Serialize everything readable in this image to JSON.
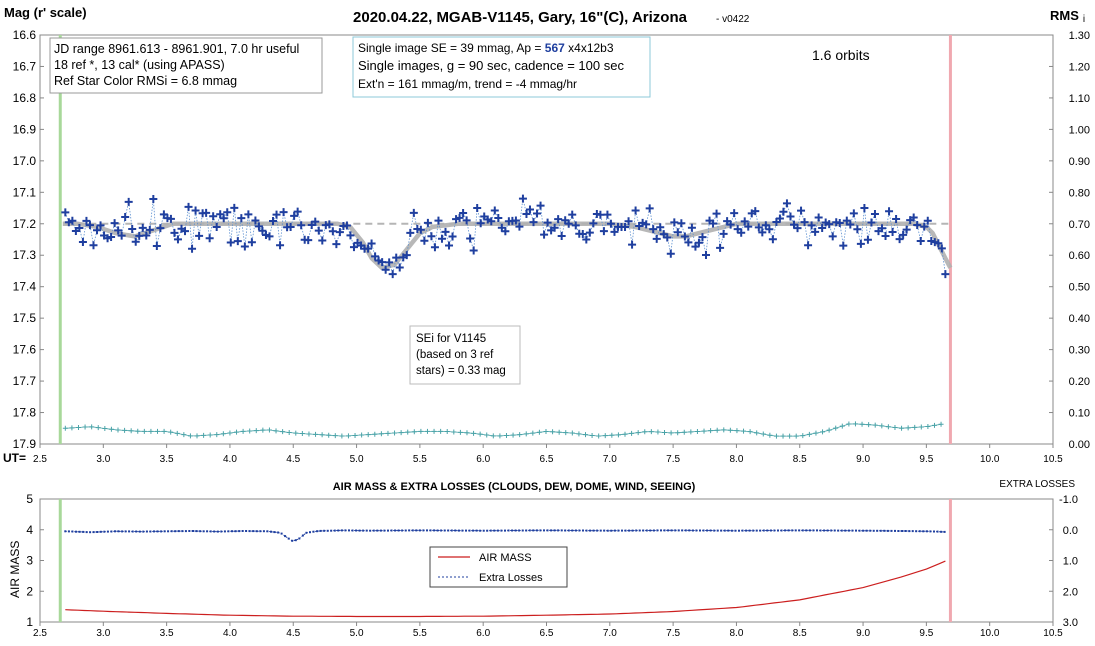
{
  "chart_data": [
    {
      "type": "scatter",
      "title": "2020.04.22, MGAB-V1145, Gary, 16\"(C), Arizona",
      "version": "- v0422",
      "ylabel": "Mag (r' scale)",
      "y2label": "RMS",
      "y2label_sub": "i",
      "xlabel": "UT=",
      "xlim": [
        2.5,
        10.5
      ],
      "ylim": [
        16.6,
        17.9
      ],
      "y2lim": [
        0.0,
        1.3
      ],
      "y_inverted": true,
      "x_ticks": [
        "2.5",
        "3.0",
        "3.5",
        "4.0",
        "4.5",
        "5.0",
        "5.5",
        "6.0",
        "6.5",
        "7.0",
        "7.5",
        "8.0",
        "8.5",
        "9.0",
        "9.5",
        "10.0",
        "10.5"
      ],
      "y_ticks": [
        "16.6",
        "16.7",
        "16.8",
        "16.9",
        "17.0",
        "17.1",
        "17.2",
        "17.3",
        "17.4",
        "17.5",
        "17.6",
        "17.7",
        "17.8",
        "17.9"
      ],
      "y2_ticks": [
        "1.30",
        "1.20",
        "1.10",
        "1.00",
        "0.90",
        "0.80",
        "0.70",
        "0.60",
        "0.50",
        "0.40",
        "0.30",
        "0.20",
        "0.10",
        "0.00"
      ],
      "info_box_1": [
        "JD range 8961.613 - 8961.901, 7.0 hr useful",
        "18 ref *, 13 cal* (using APASS)",
        "Ref Star Color RMSi = 6.8 mmag"
      ],
      "info_box_2": {
        "line1_prefix": "Single image SE = 39 mmag, Ap = ",
        "line1_ap": "567",
        "line1_suffix": " x4x12b3",
        "line2": "Single images, g = 90 sec, cadence = 100 sec",
        "line3": "Ext'n = 161 mmag/m, trend = -4 mmag/hr"
      },
      "annotation_orbits": "1.6 orbits",
      "annotation_sei": [
        "SEi for V1145",
        "(based on 3 ref",
        "stars) = 0.33 mag"
      ],
      "start_marker_x": 2.66,
      "end_marker_x": 9.69,
      "reference_level": 17.2,
      "series": [
        {
          "role": "magnitude",
          "color": "#1f3f9f"
        },
        {
          "role": "model_fit",
          "color": "#b0b0b0",
          "x": [
            2.68,
            2.8,
            2.95,
            3.1,
            3.25,
            3.4,
            3.55,
            3.7,
            3.9,
            4.1,
            4.3,
            4.5,
            4.7,
            4.85,
            4.95,
            5.05,
            5.12,
            5.2,
            5.3,
            5.4,
            5.5,
            5.6,
            5.8,
            6.0,
            6.2,
            6.4,
            6.6,
            6.8,
            7.0,
            7.2,
            7.4,
            7.5,
            7.6,
            7.7,
            7.8,
            8.0,
            8.2,
            8.4,
            8.6,
            8.8,
            9.0,
            9.2,
            9.4,
            9.5,
            9.55,
            9.6,
            9.65,
            9.69
          ],
          "y": [
            17.2,
            17.2,
            17.21,
            17.23,
            17.24,
            17.22,
            17.2,
            17.2,
            17.2,
            17.2,
            17.2,
            17.2,
            17.2,
            17.2,
            17.21,
            17.26,
            17.31,
            17.34,
            17.33,
            17.28,
            17.23,
            17.21,
            17.2,
            17.2,
            17.2,
            17.2,
            17.2,
            17.2,
            17.2,
            17.21,
            17.23,
            17.24,
            17.24,
            17.23,
            17.22,
            17.2,
            17.2,
            17.2,
            17.2,
            17.2,
            17.2,
            17.2,
            17.2,
            17.21,
            17.23,
            17.27,
            17.31,
            17.34
          ]
        },
        {
          "role": "rms",
          "color": "#4aa3a8",
          "x": [
            2.7,
            2.9,
            3.1,
            3.3,
            3.5,
            3.7,
            3.9,
            4.1,
            4.3,
            4.5,
            4.7,
            4.9,
            5.1,
            5.3,
            5.5,
            5.7,
            5.9,
            6.1,
            6.3,
            6.5,
            6.7,
            6.9,
            7.1,
            7.3,
            7.5,
            7.7,
            7.9,
            8.1,
            8.3,
            8.5,
            8.7,
            8.9,
            9.1,
            9.3,
            9.5,
            9.65
          ],
          "y": [
            0.05,
            0.055,
            0.045,
            0.04,
            0.04,
            0.025,
            0.03,
            0.04,
            0.045,
            0.035,
            0.03,
            0.025,
            0.03,
            0.035,
            0.04,
            0.04,
            0.035,
            0.025,
            0.03,
            0.04,
            0.035,
            0.025,
            0.03,
            0.04,
            0.035,
            0.04,
            0.045,
            0.04,
            0.025,
            0.025,
            0.04,
            0.065,
            0.06,
            0.05,
            0.055,
            0.065
          ]
        }
      ]
    },
    {
      "type": "line",
      "title": "AIR MASS & EXTRA LOSSES (CLOUDS, DEW, DOME, WIND, SEEING)",
      "ylabel": "AIR MASS",
      "y2label": "EXTRA LOSSES",
      "xlim": [
        2.5,
        10.5
      ],
      "ylim": [
        1,
        5
      ],
      "y2lim": [
        -1.0,
        3.0
      ],
      "x_ticks": [
        "2.5",
        "3.0",
        "3.5",
        "4.0",
        "4.5",
        "5.0",
        "5.5",
        "6.0",
        "6.5",
        "7.0",
        "7.5",
        "8.0",
        "8.5",
        "9.0",
        "9.5",
        "10.0",
        "10.5"
      ],
      "y_ticks": [
        "5",
        "4",
        "3",
        "2",
        "1"
      ],
      "y2_ticks": [
        "-1.0",
        "0.0",
        "1.0",
        "2.0",
        "3.0"
      ],
      "start_marker_x": 2.66,
      "end_marker_x": 9.69,
      "legend": {
        "placement": "center",
        "items": [
          "AIR MASS",
          "Extra Losses"
        ]
      },
      "series": [
        {
          "name": "AIR MASS",
          "color": "#cc1f1f",
          "x": [
            2.7,
            3.0,
            3.5,
            4.0,
            4.5,
            5.0,
            5.5,
            6.0,
            6.5,
            7.0,
            7.5,
            8.0,
            8.5,
            9.0,
            9.3,
            9.5,
            9.65
          ],
          "y": [
            1.4,
            1.35,
            1.28,
            1.22,
            1.19,
            1.18,
            1.18,
            1.19,
            1.22,
            1.26,
            1.34,
            1.47,
            1.72,
            2.12,
            2.46,
            2.72,
            2.98
          ]
        },
        {
          "name": "Extra Losses",
          "color": "#1f3f9f",
          "x": [
            2.7,
            2.9,
            3.1,
            3.3,
            3.5,
            3.7,
            3.9,
            4.1,
            4.3,
            4.4,
            4.45,
            4.5,
            4.55,
            4.6,
            4.7,
            4.9,
            5.1,
            5.5,
            6.0,
            6.5,
            7.0,
            7.5,
            8.0,
            8.5,
            9.0,
            9.3,
            9.5,
            9.65
          ],
          "y": [
            0.05,
            0.08,
            0.05,
            0.06,
            0.05,
            0.04,
            0.06,
            0.04,
            0.05,
            0.1,
            0.25,
            0.38,
            0.28,
            0.1,
            0.04,
            0.02,
            0.03,
            0.02,
            0.03,
            0.02,
            0.03,
            0.02,
            0.03,
            0.02,
            0.03,
            0.04,
            0.05,
            0.07
          ]
        }
      ]
    }
  ]
}
